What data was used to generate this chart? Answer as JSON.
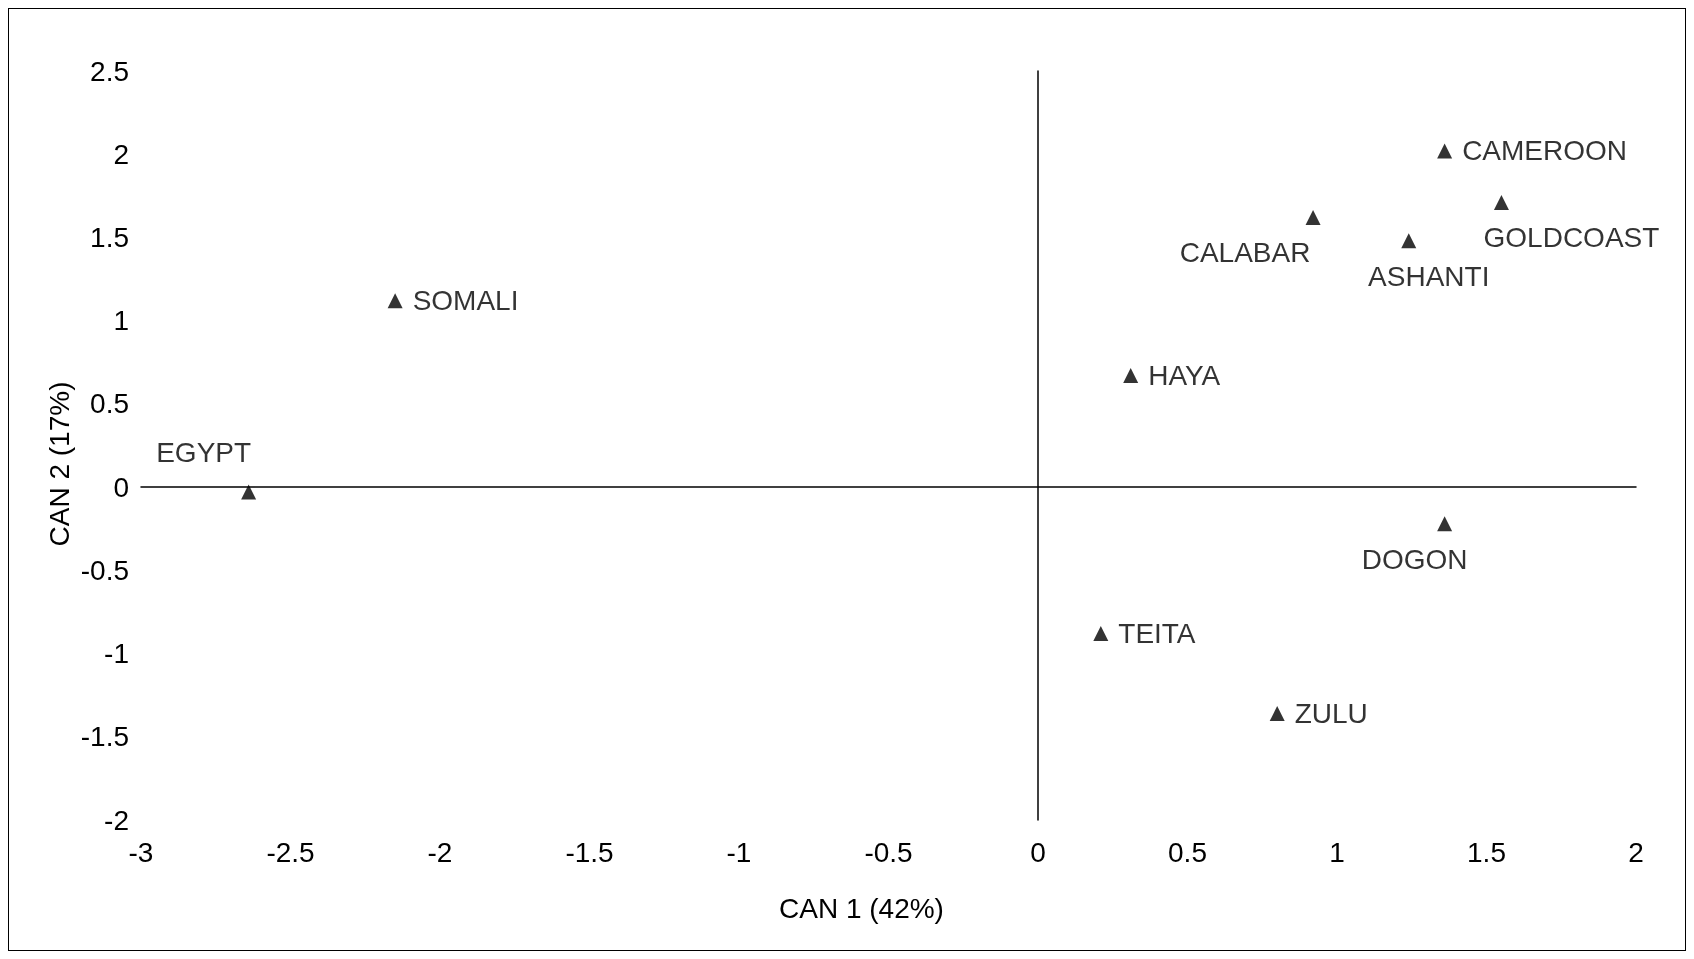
{
  "chart_data": {
    "type": "scatter",
    "xlabel": "CAN 1 (42%)",
    "ylabel": "CAN 2 (17%)",
    "marker": "triangle",
    "xlim": [
      -3,
      2
    ],
    "xticks": [
      -3,
      -2.5,
      -2,
      -1.5,
      -1,
      -0.5,
      0,
      0.5,
      1,
      1.5,
      2
    ],
    "ylim": [
      -2,
      2.5
    ],
    "yticks": [
      -2,
      -1.5,
      -1,
      -0.5,
      0,
      0.5,
      1,
      1.5,
      2,
      2.5
    ],
    "series": [
      {
        "name": "EGYPT",
        "color": "#000000",
        "x": [
          -2.64
        ],
        "values": [
          -0.03
        ]
      },
      {
        "name": "SOMALI",
        "color": "#000000",
        "x": [
          -2.15
        ],
        "values": [
          1.12
        ]
      },
      {
        "name": "HAYA",
        "color": "#000000",
        "x": [
          0.31
        ],
        "values": [
          0.67
        ]
      },
      {
        "name": "CALABAR",
        "color": "#000000",
        "x": [
          0.92
        ],
        "values": [
          1.62
        ]
      },
      {
        "name": "ASHANTI",
        "color": "#000000",
        "x": [
          1.24
        ],
        "values": [
          1.48
        ]
      },
      {
        "name": "CAMEROON",
        "color": "#000000",
        "x": [
          1.36
        ],
        "values": [
          2.02
        ]
      },
      {
        "name": "GOLDCOAST",
        "color": "#000000",
        "x": [
          1.55
        ],
        "values": [
          1.71
        ]
      },
      {
        "name": "DOGON",
        "color": "#000000",
        "x": [
          1.36
        ],
        "values": [
          -0.22
        ]
      },
      {
        "name": "TEITA",
        "color": "#000000",
        "x": [
          0.21
        ],
        "values": [
          -0.88
        ]
      },
      {
        "name": "ZULU",
        "color": "#000000",
        "x": [
          0.8
        ],
        "values": [
          -1.36
        ]
      }
    ]
  }
}
